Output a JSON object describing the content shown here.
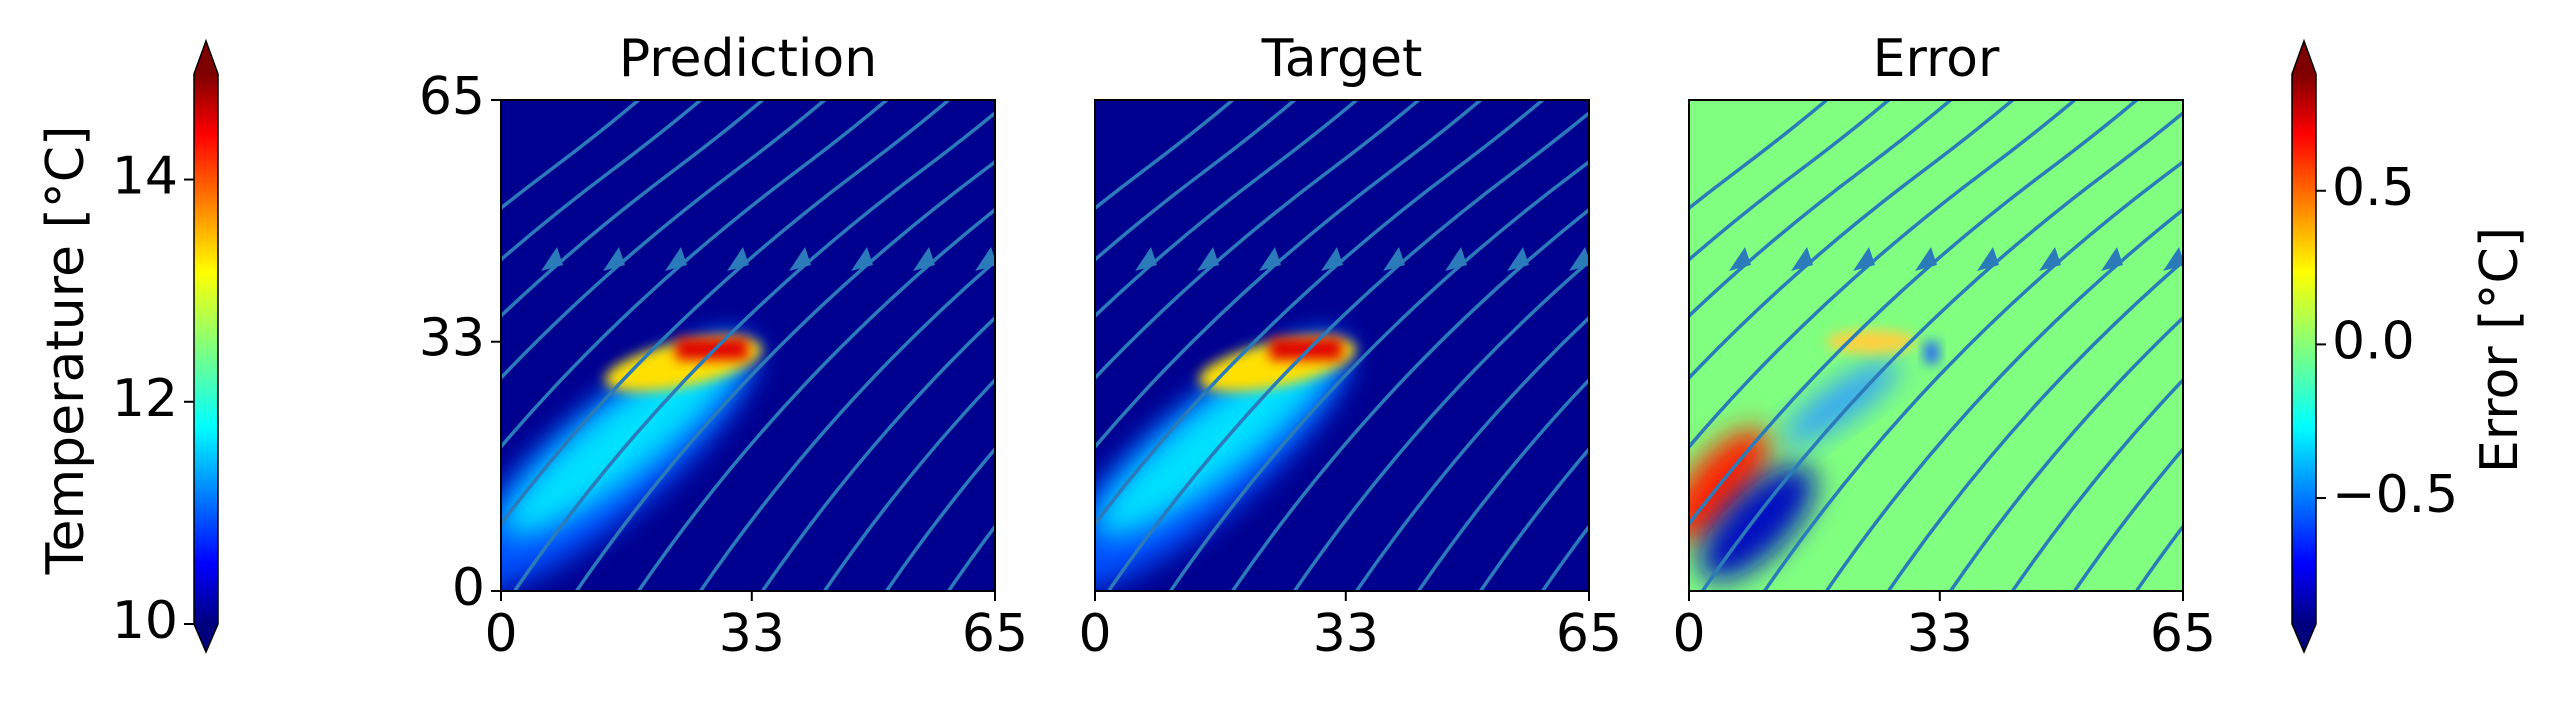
{
  "chart_data": [
    {
      "type": "colorbar",
      "label": "Temperature [°C]",
      "ylim": [
        10,
        14.95
      ],
      "yticks": [
        10,
        12,
        14
      ]
    },
    {
      "type": "heatmap",
      "title": "Prediction",
      "xlim": [
        0,
        65
      ],
      "ylim": [
        0,
        65
      ],
      "xticks": [
        0,
        33,
        65
      ],
      "yticks": [
        0,
        33,
        65
      ]
    },
    {
      "type": "heatmap",
      "title": "Target",
      "xlim": [
        0,
        65
      ],
      "ylim": [
        0,
        65
      ],
      "xticks": [
        0,
        33,
        65
      ]
    },
    {
      "type": "heatmap",
      "title": "Error",
      "xlim": [
        0,
        65
      ],
      "ylim": [
        0,
        65
      ],
      "xticks": [
        0,
        33,
        65
      ]
    },
    {
      "type": "colorbar",
      "label": "Error [°C]",
      "ylim": [
        -0.91,
        0.88
      ],
      "yticks": [
        {
          "value": -0.5,
          "label": "−0.5"
        },
        {
          "value": 0,
          "label": "0.0"
        },
        0.5
      ]
    }
  ]
}
